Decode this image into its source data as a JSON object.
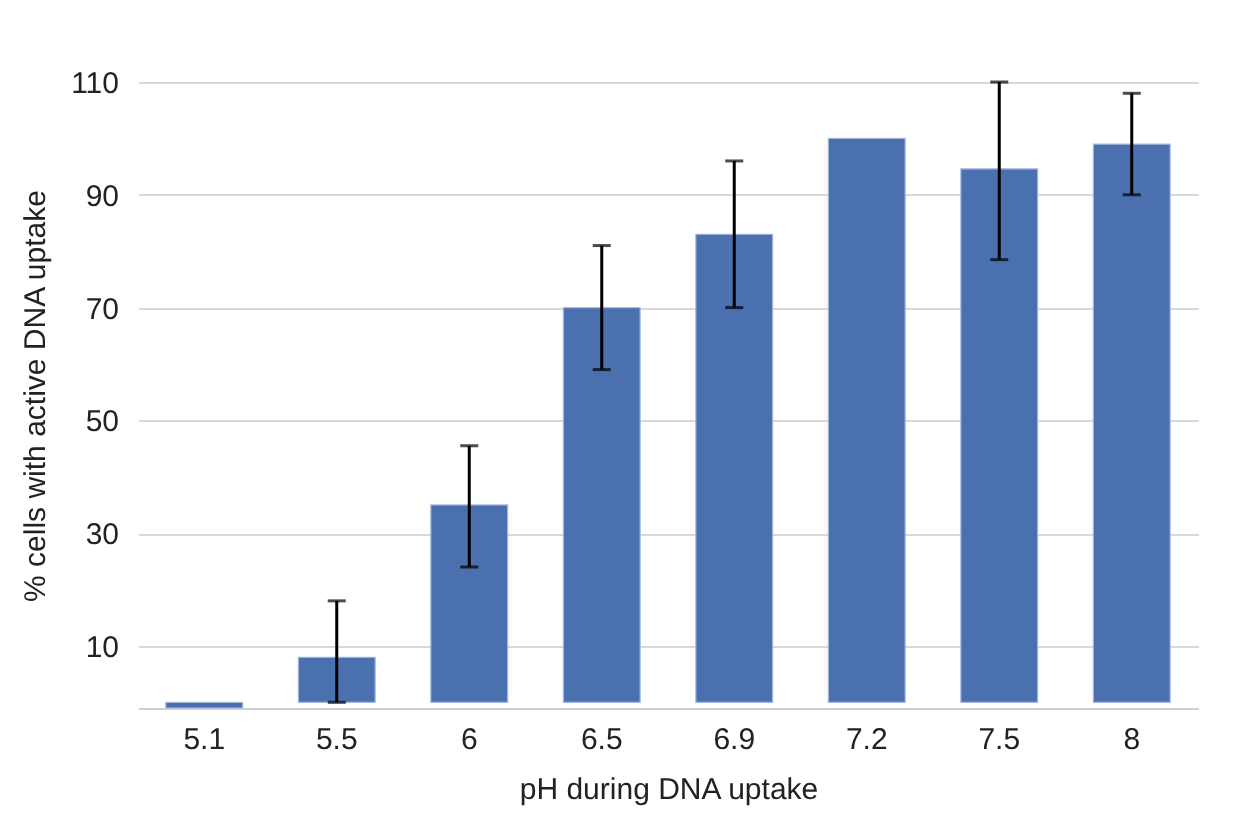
{
  "chart_data": {
    "type": "bar",
    "xlabel": "pH during DNA uptake",
    "ylabel": "% cells with active DNA uptake",
    "categories": [
      "5.1",
      "5.5",
      "6",
      "6.5",
      "6.9",
      "7.2",
      "7.5",
      "8"
    ],
    "values": [
      -1,
      8,
      35,
      70,
      83,
      100,
      94.6,
      99
    ],
    "errors": [
      null,
      [
        0,
        18
      ],
      [
        24,
        45.5
      ],
      [
        59,
        81
      ],
      [
        70,
        96
      ],
      null,
      [
        78.5,
        110
      ],
      [
        90,
        108
      ]
    ],
    "color": "#4a70b0",
    "ylim": [
      -1,
      110
    ],
    "yticks": [
      10,
      30,
      50,
      70,
      90,
      110
    ],
    "grid": "y"
  }
}
